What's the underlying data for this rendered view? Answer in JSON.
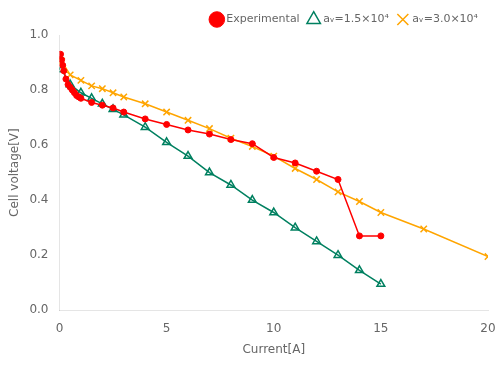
{
  "chart_data": {
    "type": "line",
    "xlabel": "Current[A]",
    "ylabel": "Cell voltage[V]",
    "xlim": [
      0,
      20
    ],
    "ylim": [
      0,
      1.0
    ],
    "xticks": [
      0,
      5,
      10,
      15,
      20
    ],
    "yticks": [
      {
        "value": 0,
        "label": "0.0"
      },
      0.2,
      0.4,
      0.6,
      0.8,
      {
        "value": 1,
        "label": "1.0"
      }
    ],
    "grid": false,
    "legend": "upper right",
    "series": [
      {
        "name": "Experimental",
        "color": "#ff0000",
        "marker": "circle",
        "x": [
          0.05,
          0.1,
          0.15,
          0.2,
          0.3,
          0.4,
          0.5,
          0.6,
          0.7,
          0.8,
          0.9,
          1.0,
          1.5,
          2.0,
          2.5,
          3.0,
          4.0,
          5.0,
          6.0,
          7.0,
          8.0,
          9.0,
          10.0,
          11.0,
          12.0,
          13.0,
          14.0,
          15.0
        ],
        "values": [
          0.93,
          0.91,
          0.89,
          0.87,
          0.84,
          0.82,
          0.81,
          0.8,
          0.79,
          0.78,
          0.775,
          0.77,
          0.755,
          0.745,
          0.735,
          0.72,
          0.695,
          0.675,
          0.655,
          0.64,
          0.62,
          0.605,
          0.555,
          0.535,
          0.505,
          0.475,
          0.27,
          0.27
        ]
      },
      {
        "name": "aᵥ=1.5×10⁴",
        "color": "#008060",
        "marker": "triangle",
        "x": [
          0.1,
          0.5,
          1.0,
          1.5,
          2.0,
          2.5,
          3.0,
          4.0,
          5.0,
          6.0,
          7.0,
          8.0,
          9.0,
          10.0,
          11.0,
          12.0,
          13.0,
          14.0,
          15.0
        ],
        "values": [
          0.875,
          0.82,
          0.79,
          0.77,
          0.75,
          0.73,
          0.71,
          0.665,
          0.61,
          0.56,
          0.5,
          0.455,
          0.4,
          0.355,
          0.3,
          0.25,
          0.2,
          0.145,
          0.095
        ]
      },
      {
        "name": "aᵥ=3.0×10⁴",
        "color": "#ffa500",
        "marker": "x",
        "x": [
          0.1,
          0.5,
          1.0,
          1.5,
          2.0,
          2.5,
          3.0,
          4.0,
          5.0,
          6.0,
          7.0,
          8.0,
          9.0,
          10.0,
          11.0,
          12.0,
          13.0,
          14.0,
          15.0,
          17.0,
          20.0
        ],
        "values": [
          0.905,
          0.855,
          0.835,
          0.815,
          0.805,
          0.79,
          0.775,
          0.75,
          0.72,
          0.69,
          0.66,
          0.625,
          0.595,
          0.56,
          0.515,
          0.475,
          0.43,
          0.395,
          0.355,
          0.295,
          0.195
        ]
      }
    ]
  }
}
